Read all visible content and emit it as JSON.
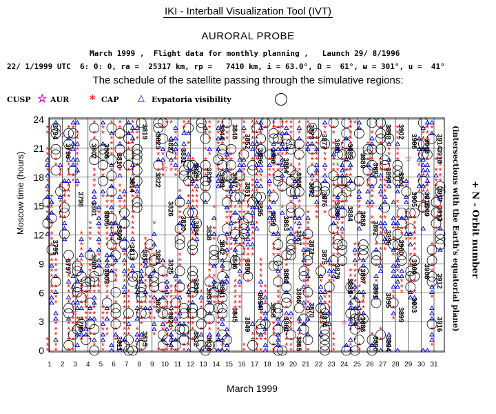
{
  "header": {
    "tool_title": "IKI - Interball Visualization Tool (IVT)",
    "probe_title": "AURORAL PROBE",
    "info_line1": "March 1999 ,  Flight data for monthly planning ,   Launch 29/ 8/1996",
    "info_line2": "22/ 1/1999 UTC  6: 0: 0, ra =  25317 km, rp =   7410 km, i = 63.0°, Ω =  61°, ω = 301°, u =  41°",
    "schedule_title": "The schedule of the satellite passing through the simulative regions:"
  },
  "legend": {
    "cusp_label": "CUSP",
    "aur_label": "AUR",
    "cap_label": "CAP",
    "evp_label": "Evpatoria visibility"
  },
  "axes": {
    "ylabel": "Moscow time (hours)",
    "right_label": "+ N - Orbit number",
    "right_sublabel": "(intersections with the Earth's equatorial plane)",
    "xlabel": "March 1999"
  },
  "colors": {
    "cap": "#ff0000",
    "evpatoria": "#0000cc",
    "aur": "#cc00cc",
    "circle": "#000000"
  },
  "chart_data": {
    "type": "scatter",
    "title": "The schedule of the satellite passing through the simulative regions:",
    "xlabel": "March 1999",
    "ylabel": "Moscow time (hours)",
    "xlim": [
      1,
      31
    ],
    "ylim": [
      0,
      24
    ],
    "x_ticks": [
      1,
      2,
      3,
      4,
      5,
      6,
      7,
      8,
      9,
      10,
      11,
      12,
      13,
      14,
      15,
      16,
      17,
      18,
      19,
      20,
      21,
      22,
      23,
      24,
      25,
      26,
      27,
      28,
      29,
      30,
      31
    ],
    "y_ticks": [
      0,
      3,
      6,
      9,
      12,
      15,
      18,
      21,
      24
    ],
    "grid": true,
    "legend_position": "top-left",
    "series": [
      {
        "name": "CAP",
        "marker": "asterisk",
        "pattern": "dense columns of markers along most orbit passes, every day"
      },
      {
        "name": "Evpatoria visibility",
        "marker": "triangle",
        "pattern": "stacks of markers on passes visible from Evpatoria"
      },
      {
        "name": "AUR",
        "marker": "star",
        "pattern": "few isolated markers"
      }
    ],
    "orbit_labels": [
      {
        "day": 1,
        "hour": 22.5,
        "orbit": "3794"
      },
      {
        "day": 1,
        "hour": 10.5,
        "orbit": "3795"
      },
      {
        "day": 2,
        "hour": 20.5,
        "orbit": "3796"
      },
      {
        "day": 2,
        "hour": 8.5,
        "orbit": "3797"
      },
      {
        "day": 3,
        "hour": 15.5,
        "orbit": "3798"
      },
      {
        "day": 3,
        "hour": 2.5,
        "orbit": "3799"
      },
      {
        "day": 4,
        "hour": 9.0,
        "orbit": "3800"
      },
      {
        "day": 4,
        "hour": 14.5,
        "orbit": "3801"
      },
      {
        "day": 4,
        "hour": 20.5,
        "orbit": "3802"
      },
      {
        "day": 5,
        "hour": 7.5,
        "orbit": "3803"
      },
      {
        "day": 5,
        "hour": 13.5,
        "orbit": "3805"
      },
      {
        "day": 5,
        "hour": 20.5,
        "orbit": "3806"
      },
      {
        "day": 6,
        "hour": 12.0,
        "orbit": "3809"
      },
      {
        "day": 6,
        "hour": 19.5,
        "orbit": "3810"
      },
      {
        "day": 6,
        "hour": 0.5,
        "orbit": "3811"
      },
      {
        "day": 7,
        "hour": 10.0,
        "orbit": "3813"
      },
      {
        "day": 7,
        "hour": 17.0,
        "orbit": "3814"
      },
      {
        "day": 8,
        "hour": 1.0,
        "orbit": "3815"
      },
      {
        "day": 8,
        "hour": 9.5,
        "orbit": "3817"
      },
      {
        "day": 8,
        "hour": 22.5,
        "orbit": "3819"
      },
      {
        "day": 9,
        "hour": 4.5,
        "orbit": "3820"
      },
      {
        "day": 9,
        "hour": 9.5,
        "orbit": "3821"
      },
      {
        "day": 9,
        "hour": 17.5,
        "orbit": "3822"
      },
      {
        "day": 9,
        "hour": 21.5,
        "orbit": "3823"
      },
      {
        "day": 10,
        "hour": 3.0,
        "orbit": "3824"
      },
      {
        "day": 10,
        "hour": 8.5,
        "orbit": "3825"
      },
      {
        "day": 10,
        "hour": 14.5,
        "orbit": "3826"
      },
      {
        "day": 10,
        "hour": 21.0,
        "orbit": "3827"
      },
      {
        "day": 11,
        "hour": 13.0,
        "orbit": "3830"
      },
      {
        "day": 11,
        "hour": 20.0,
        "orbit": "3831"
      },
      {
        "day": 12,
        "hour": 1.0,
        "orbit": "3832"
      },
      {
        "day": 12,
        "hour": 6.5,
        "orbit": "3833"
      },
      {
        "day": 12,
        "hour": 12.5,
        "orbit": "3834"
      },
      {
        "day": 12,
        "hour": 18.5,
        "orbit": "3835"
      },
      {
        "day": 13,
        "hour": 0.5,
        "orbit": "3836"
      },
      {
        "day": 13,
        "hour": 5.5,
        "orbit": "3837"
      },
      {
        "day": 13,
        "hour": 12.0,
        "orbit": "3838"
      },
      {
        "day": 13,
        "hour": 18.0,
        "orbit": "3839"
      },
      {
        "day": 14,
        "hour": 6.0,
        "orbit": "3841"
      },
      {
        "day": 14,
        "hour": 10.5,
        "orbit": "3842"
      },
      {
        "day": 14,
        "hour": 17.5,
        "orbit": "3843"
      },
      {
        "day": 14,
        "hour": 22.5,
        "orbit": "3844"
      },
      {
        "day": 15,
        "hour": 3.5,
        "orbit": "3845"
      },
      {
        "day": 15,
        "hour": 9.0,
        "orbit": "3846"
      },
      {
        "day": 15,
        "hour": 17.5,
        "orbit": "3847"
      },
      {
        "day": 15,
        "hour": 22.5,
        "orbit": "3848"
      },
      {
        "day": 16,
        "hour": 2.5,
        "orbit": "3849"
      },
      {
        "day": 16,
        "hour": 8.5,
        "orbit": "3850"
      },
      {
        "day": 16,
        "hour": 16.5,
        "orbit": "3851"
      },
      {
        "day": 16,
        "hour": 21.5,
        "orbit": "3852"
      },
      {
        "day": 17,
        "hour": 5.0,
        "orbit": "3854"
      },
      {
        "day": 17,
        "hour": 14.5,
        "orbit": "3855"
      },
      {
        "day": 17,
        "hour": 20.0,
        "orbit": "3856"
      },
      {
        "day": 18,
        "hour": 4.0,
        "orbit": "3858"
      },
      {
        "day": 18,
        "hour": 13.5,
        "orbit": "3859"
      },
      {
        "day": 18,
        "hour": 20.0,
        "orbit": "3860"
      },
      {
        "day": 19,
        "hour": 2.5,
        "orbit": "3861"
      },
      {
        "day": 19,
        "hour": 7.5,
        "orbit": "3862"
      },
      {
        "day": 19,
        "hour": 13.0,
        "orbit": "3863"
      },
      {
        "day": 19,
        "hour": 19.0,
        "orbit": "3864"
      },
      {
        "day": 20,
        "hour": 0.5,
        "orbit": "3865"
      },
      {
        "day": 20,
        "hour": 5.5,
        "orbit": "3866"
      },
      {
        "day": 20,
        "hour": 11.5,
        "orbit": "3867"
      },
      {
        "day": 20,
        "hour": 17.5,
        "orbit": "3868"
      },
      {
        "day": 21,
        "hour": 4.0,
        "orbit": "3870"
      },
      {
        "day": 21,
        "hour": 10.5,
        "orbit": "3871"
      },
      {
        "day": 21,
        "hour": 16.5,
        "orbit": "3872"
      },
      {
        "day": 21,
        "hour": 22.5,
        "orbit": "3873"
      },
      {
        "day": 22,
        "hour": 3.0,
        "orbit": "3874"
      },
      {
        "day": 22,
        "hour": 9.5,
        "orbit": "3875"
      },
      {
        "day": 22,
        "hour": 15.5,
        "orbit": "3876"
      },
      {
        "day": 22,
        "hour": 21.5,
        "orbit": "3877"
      },
      {
        "day": 23,
        "hour": 8.0,
        "orbit": "3879"
      },
      {
        "day": 23,
        "hour": 14.5,
        "orbit": "3880"
      },
      {
        "day": 23,
        "hour": 21.0,
        "orbit": "3881"
      },
      {
        "day": 24,
        "hour": 6.5,
        "orbit": "3883"
      },
      {
        "day": 24,
        "hour": 14.0,
        "orbit": "3884"
      },
      {
        "day": 24,
        "hour": 20.5,
        "orbit": "3885"
      },
      {
        "day": 25,
        "hour": 2.5,
        "orbit": "3886"
      },
      {
        "day": 25,
        "hour": 7.5,
        "orbit": "3887"
      },
      {
        "day": 25,
        "hour": 13.5,
        "orbit": "3888"
      },
      {
        "day": 25,
        "hour": 19.5,
        "orbit": "3889"
      },
      {
        "day": 26,
        "hour": 0.5,
        "orbit": "3890"
      },
      {
        "day": 26,
        "hour": 6.0,
        "orbit": "3891"
      },
      {
        "day": 26,
        "hour": 12.5,
        "orbit": "3892"
      },
      {
        "day": 26,
        "hour": 18.5,
        "orbit": "3893"
      },
      {
        "day": 27,
        "hour": 0.5,
        "orbit": "3894"
      },
      {
        "day": 27,
        "hour": 5.0,
        "orbit": "3895"
      },
      {
        "day": 27,
        "hour": 11.5,
        "orbit": "3896"
      },
      {
        "day": 27,
        "hour": 18.0,
        "orbit": "3897"
      },
      {
        "day": 27,
        "hour": 22.5,
        "orbit": "3898"
      },
      {
        "day": 28,
        "hour": 3.5,
        "orbit": "3899"
      },
      {
        "day": 28,
        "hour": 10.5,
        "orbit": "3900"
      },
      {
        "day": 28,
        "hour": 17.5,
        "orbit": "3901"
      },
      {
        "day": 28,
        "hour": 22.5,
        "orbit": "3902"
      },
      {
        "day": 29,
        "hour": 4.5,
        "orbit": "3903"
      },
      {
        "day": 29,
        "hour": 8.5,
        "orbit": "3904"
      },
      {
        "day": 29,
        "hour": 15.5,
        "orbit": "3905"
      },
      {
        "day": 29,
        "hour": 21.5,
        "orbit": "3906"
      },
      {
        "day": 30,
        "hour": 8.0,
        "orbit": "3908"
      },
      {
        "day": 30,
        "hour": 14.5,
        "orbit": "3909"
      },
      {
        "day": 30,
        "hour": 21.0,
        "orbit": "3910"
      },
      {
        "day": 31,
        "hour": 7.0,
        "orbit": "3912"
      },
      {
        "day": 31,
        "hour": 14.0,
        "orbit": "3913"
      },
      {
        "day": 31,
        "hour": 21.5,
        "orbit": "3914"
      },
      {
        "day": 30,
        "hour": 15.5,
        "orbit": "3915"
      },
      {
        "day": 31,
        "hour": 2.5,
        "orbit": "3916"
      },
      {
        "day": 31,
        "hour": 16.0,
        "orbit": "3917"
      },
      {
        "day": 31,
        "hour": 20.0,
        "orbit": "3918"
      }
    ]
  }
}
